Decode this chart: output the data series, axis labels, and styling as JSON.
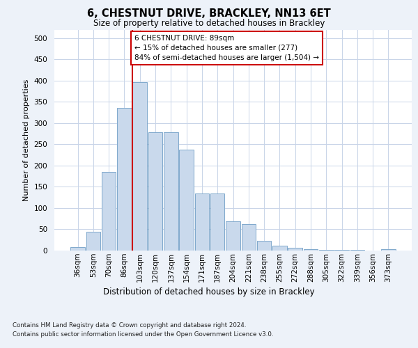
{
  "title_line1": "6, CHESTNUT DRIVE, BRACKLEY, NN13 6ET",
  "title_line2": "Size of property relative to detached houses in Brackley",
  "xlabel": "Distribution of detached houses by size in Brackley",
  "ylabel": "Number of detached properties",
  "categories": [
    "36sqm",
    "53sqm",
    "70sqm",
    "86sqm",
    "103sqm",
    "120sqm",
    "137sqm",
    "154sqm",
    "171sqm",
    "187sqm",
    "204sqm",
    "221sqm",
    "238sqm",
    "255sqm",
    "272sqm",
    "288sqm",
    "305sqm",
    "322sqm",
    "339sqm",
    "356sqm",
    "373sqm"
  ],
  "values": [
    8,
    45,
    185,
    335,
    397,
    278,
    278,
    238,
    135,
    135,
    68,
    62,
    23,
    12,
    6,
    4,
    2,
    1,
    1,
    0,
    3
  ],
  "bar_color": "#c9d9ec",
  "bar_edge_color": "#7fa8cc",
  "vline_x": 3.5,
  "vline_color": "#cc0000",
  "annotation_text": "6 CHESTNUT DRIVE: 89sqm\n← 15% of detached houses are smaller (277)\n84% of semi-detached houses are larger (1,504) →",
  "annotation_box_color": "#ffffff",
  "annotation_box_edge": "#cc0000",
  "ylim": [
    0,
    520
  ],
  "yticks": [
    0,
    50,
    100,
    150,
    200,
    250,
    300,
    350,
    400,
    450,
    500
  ],
  "footer_line1": "Contains HM Land Registry data © Crown copyright and database right 2024.",
  "footer_line2": "Contains public sector information licensed under the Open Government Licence v3.0.",
  "bg_color": "#edf2f9",
  "plot_bg_color": "#ffffff",
  "grid_color": "#c8d4e8"
}
